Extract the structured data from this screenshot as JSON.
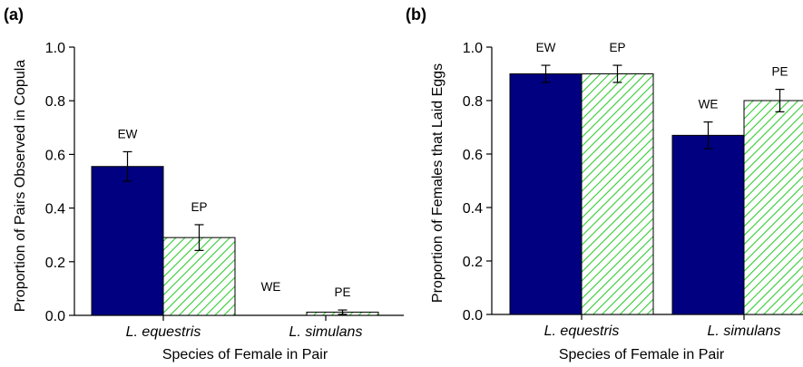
{
  "chart_data": [
    {
      "panel_label": "(a)",
      "type": "bar",
      "categories": [
        "L. equestris",
        "L. simulans"
      ],
      "xlabel": "Species of Female in Pair",
      "ylabel": "Proportion of Pairs Observed in Copula",
      "ylim": [
        0,
        1.0
      ],
      "yticks": [
        "0.0",
        "0.2",
        "0.4",
        "0.6",
        "0.8",
        "1.0"
      ],
      "bars": [
        {
          "label": "EW",
          "category": "L. equestris",
          "value": 0.555,
          "err": 0.055,
          "fill": "solid"
        },
        {
          "label": "EP",
          "category": "L. equestris",
          "value": 0.29,
          "err": 0.048,
          "fill": "hatched"
        },
        {
          "label": "WE",
          "category": "L. simulans",
          "value": 0.0,
          "err": 0,
          "fill": "solid"
        },
        {
          "label": "PE",
          "category": "L. simulans",
          "value": 0.012,
          "err": 0.008,
          "fill": "hatched"
        }
      ]
    },
    {
      "panel_label": "(b)",
      "type": "bar",
      "categories": [
        "L. equestris",
        "L. simulans"
      ],
      "xlabel": "Species of Female in Pair",
      "ylabel": "Proportion of Females that Laid Eggs",
      "ylim": [
        0,
        1.0
      ],
      "yticks": [
        "0.0",
        "0.2",
        "0.4",
        "0.6",
        "0.8",
        "1.0"
      ],
      "bars": [
        {
          "label": "EW",
          "category": "L. equestris",
          "value": 0.9,
          "err": 0.032,
          "fill": "solid"
        },
        {
          "label": "EP",
          "category": "L. equestris",
          "value": 0.9,
          "err": 0.032,
          "fill": "hatched"
        },
        {
          "label": "WE",
          "category": "L. simulans",
          "value": 0.67,
          "err": 0.05,
          "fill": "solid"
        },
        {
          "label": "PE",
          "category": "L. simulans",
          "value": 0.8,
          "err": 0.042,
          "fill": "hatched"
        }
      ]
    }
  ],
  "colors": {
    "solid_bar": "#000080",
    "hatch_line": "#33cc33",
    "axis": "#000000"
  }
}
